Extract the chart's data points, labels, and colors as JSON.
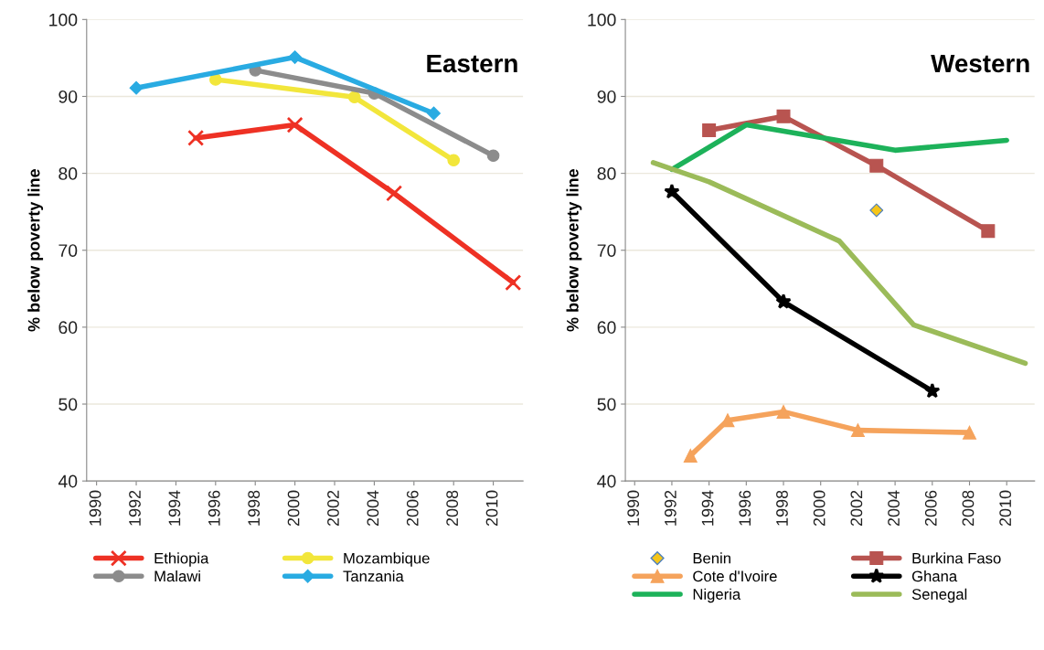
{
  "chart_data": [
    {
      "type": "line",
      "title": "Eastern",
      "ylabel": "% below poverty line",
      "xlim": [
        1989.5,
        2011.5
      ],
      "ylim": [
        40,
        100
      ],
      "xticks": [
        1990,
        1992,
        1994,
        1996,
        1998,
        2000,
        2002,
        2004,
        2006,
        2008,
        2010
      ],
      "yticks": [
        40,
        50,
        60,
        70,
        80,
        90,
        100
      ],
      "grid": "y",
      "legend": "bottom",
      "line_style": "solid",
      "series": [
        {
          "name": "Ethiopia",
          "color": "#ee3124",
          "marker": "cross",
          "x": [
            1995,
            2000,
            2005,
            2011
          ],
          "values": [
            84.6,
            86.3,
            77.4,
            65.8
          ]
        },
        {
          "name": "Mozambique",
          "color": "#f2e63b",
          "marker": "circle",
          "x": [
            1996,
            2003,
            2008
          ],
          "values": [
            92.2,
            89.9,
            81.7
          ]
        },
        {
          "name": "Malawi",
          "color": "#8c8c8c",
          "marker": "circle",
          "x": [
            1998,
            2004,
            2010
          ],
          "values": [
            93.4,
            90.4,
            82.3
          ]
        },
        {
          "name": "Tanzania",
          "color": "#29abe2",
          "marker": "diamond",
          "x": [
            1992,
            2000,
            2007
          ],
          "values": [
            91.1,
            95.1,
            87.8
          ]
        }
      ]
    },
    {
      "type": "line",
      "title": "Western",
      "ylabel": "% below poverty line",
      "xlim": [
        1989.5,
        2011.5
      ],
      "ylim": [
        40,
        100
      ],
      "xticks": [
        1990,
        1992,
        1994,
        1996,
        1998,
        2000,
        2002,
        2004,
        2006,
        2008,
        2010
      ],
      "yticks": [
        40,
        50,
        60,
        70,
        80,
        90,
        100
      ],
      "grid": "y",
      "legend": "bottom",
      "line_style": "solid",
      "series": [
        {
          "name": "Benin",
          "type": "scatter",
          "color": "#f5c518",
          "marker": "diamond",
          "x": [
            2003
          ],
          "values": [
            75.2
          ]
        },
        {
          "name": "Burkina Faso",
          "color": "#b85450",
          "marker": "square",
          "x": [
            1994,
            1998,
            2003,
            2009
          ],
          "values": [
            85.6,
            87.4,
            81.0,
            72.5
          ]
        },
        {
          "name": "Cote d'Ivoire",
          "color": "#f5a35c",
          "marker": "triangle",
          "x": [
            1993,
            1995,
            1998,
            2002,
            2008
          ],
          "values": [
            43.3,
            47.9,
            49.0,
            46.6,
            46.3
          ]
        },
        {
          "name": "Ghana",
          "color": "#000000",
          "marker": "star",
          "x": [
            1992,
            1998,
            2006
          ],
          "values": [
            77.6,
            63.3,
            51.7
          ]
        },
        {
          "name": "Nigeria",
          "color": "#1db25a",
          "marker": "none",
          "x": [
            1992,
            1996,
            2004,
            2010
          ],
          "values": [
            80.5,
            86.3,
            83.0,
            84.3
          ]
        },
        {
          "name": "Senegal",
          "color": "#9bbb59",
          "marker": "none",
          "x": [
            1991,
            1994,
            2001,
            2005,
            2011
          ],
          "values": [
            81.4,
            78.9,
            71.2,
            60.3,
            55.3
          ]
        }
      ]
    }
  ]
}
